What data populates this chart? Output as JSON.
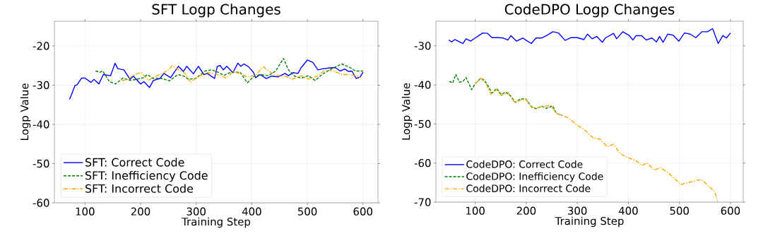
{
  "chart_data": [
    {
      "type": "line",
      "title": "SFT Logp Changes",
      "xlabel": "Training Step",
      "ylabel": "Logp Value",
      "xlim": [
        45,
        627
      ],
      "ylim": [
        -60,
        -13.7
      ],
      "xticks": [
        100,
        200,
        300,
        400,
        500,
        600
      ],
      "yticks": [
        -60,
        -50,
        -40,
        -30,
        -20
      ],
      "grid": true,
      "legend": "bottom left",
      "series": [
        {
          "name": "SFT: Correct Code",
          "color": "#0000ff",
          "line_style": "solid",
          "x": [
            72,
            75,
            82,
            86,
            94,
            100,
            111,
            116,
            125,
            133,
            146,
            154,
            159,
            170,
            181,
            187,
            200,
            206,
            216,
            223,
            235,
            242,
            254,
            268,
            277,
            283,
            295,
            304,
            314,
            320,
            333,
            338,
            343,
            349,
            355,
            366,
            375,
            380,
            386,
            394,
            403,
            407,
            415,
            426,
            436,
            447,
            460,
            466,
            474,
            483,
            489,
            500,
            510,
            519,
            529,
            542,
            550,
            559,
            567,
            574,
            580,
            588,
            595,
            600
          ],
          "values": [
            -33.6,
            -32.7,
            -30.1,
            -29.9,
            -28.2,
            -28.2,
            -29.3,
            -28.5,
            -29.7,
            -27.3,
            -27.6,
            -24.4,
            -25.8,
            -26.1,
            -28.5,
            -27.7,
            -29.7,
            -29.1,
            -30.6,
            -28.8,
            -28.3,
            -27.0,
            -28.1,
            -25.2,
            -26.5,
            -25.2,
            -27.1,
            -25.2,
            -27.3,
            -27.0,
            -28.3,
            -25.2,
            -25.0,
            -26.1,
            -25.2,
            -26.8,
            -24.4,
            -25.2,
            -24.6,
            -25.3,
            -26.7,
            -28.1,
            -27.3,
            -28.3,
            -27.7,
            -27.9,
            -27.0,
            -27.6,
            -26.8,
            -27.0,
            -25.5,
            -23.6,
            -24.2,
            -26.1,
            -25.8,
            -25.6,
            -25.5,
            -26.4,
            -25.9,
            -26.5,
            -26.4,
            -28.3,
            -27.9,
            -26.7
          ]
        },
        {
          "name": "SFT: Inefficiency Code",
          "color": "#008000",
          "line_style": "dashed",
          "x": [
            119,
            127,
            132,
            144,
            155,
            168,
            182,
            193,
            206,
            212,
            223,
            235,
            252,
            267,
            278,
            286,
            299,
            316,
            328,
            339,
            350,
            362,
            379,
            392,
            403,
            415,
            430,
            443,
            457,
            466,
            477,
            489,
            502,
            514,
            529,
            544,
            562,
            574,
            587,
            600
          ],
          "values": [
            -26.4,
            -26.7,
            -26.4,
            -29.1,
            -29.7,
            -28.2,
            -28.8,
            -28.5,
            -28.1,
            -27.3,
            -28.3,
            -28.2,
            -28.9,
            -27.3,
            -27.7,
            -28.5,
            -28.3,
            -26.4,
            -26.1,
            -26.7,
            -27.5,
            -26.7,
            -26.7,
            -29.4,
            -27.9,
            -27.3,
            -27.6,
            -26.4,
            -23.2,
            -26.1,
            -27.7,
            -28.2,
            -27.6,
            -28.8,
            -27.0,
            -25.8,
            -24.6,
            -25.3,
            -26.4,
            -26.4
          ]
        },
        {
          "name": "SFT: Incorrect Code",
          "color": "#ffa500",
          "line_style": "dashdot",
          "x": [
            166,
            176,
            185,
            193,
            201,
            214,
            225,
            240,
            250,
            257,
            269,
            280,
            290,
            305,
            320,
            335,
            354,
            367,
            379,
            392,
            407,
            421,
            430,
            443,
            460,
            473,
            489,
            502,
            519,
            532,
            548,
            562,
            574,
            587,
            597
          ],
          "values": [
            -28.8,
            -28.7,
            -27.7,
            -27.1,
            -26.8,
            -28.8,
            -27.9,
            -27.0,
            -26.1,
            -25.0,
            -26.1,
            -27.0,
            -29.3,
            -27.7,
            -26.8,
            -27.1,
            -28.2,
            -26.5,
            -27.1,
            -27.9,
            -27.5,
            -25.3,
            -26.4,
            -27.5,
            -27.7,
            -28.5,
            -27.6,
            -28.5,
            -27.6,
            -26.1,
            -26.4,
            -27.3,
            -27.3,
            -27.6,
            -28.1
          ]
        }
      ]
    },
    {
      "type": "line",
      "title": "CodeDPO Logp Changes",
      "xlabel": "Training Step",
      "ylabel": "Logp Value",
      "xlim": [
        23,
        625
      ],
      "ylim": [
        -70,
        -23.7
      ],
      "xticks": [
        100,
        200,
        300,
        400,
        500,
        600
      ],
      "yticks": [
        -70,
        -60,
        -50,
        -40,
        -30
      ],
      "grid": true,
      "legend": "bottom left",
      "series": [
        {
          "name": "CodeDPO: Correct Code",
          "color": "#0000ff",
          "line_style": "solid",
          "x": [
            48,
            54,
            60,
            76,
            82,
            91,
            100,
            107,
            115,
            124,
            133,
            146,
            155,
            164,
            170,
            181,
            193,
            200,
            210,
            219,
            230,
            241,
            252,
            263,
            276,
            288,
            300,
            313,
            320,
            329,
            338,
            349,
            355,
            371,
            377,
            389,
            402,
            409,
            415,
            426,
            435,
            446,
            455,
            461,
            468,
            477,
            488,
            499,
            510,
            521,
            532,
            544,
            555,
            565,
            576,
            585,
            592,
            600
          ],
          "values": [
            -28.5,
            -29.0,
            -28.4,
            -29.4,
            -28.2,
            -28.8,
            -28.0,
            -27.4,
            -26.7,
            -26.8,
            -27.9,
            -27.9,
            -28.0,
            -28.5,
            -27.4,
            -28.8,
            -28.0,
            -28.6,
            -29.4,
            -28.0,
            -28.0,
            -27.3,
            -26.4,
            -26.7,
            -28.6,
            -27.9,
            -27.9,
            -28.4,
            -27.0,
            -28.2,
            -27.6,
            -29.1,
            -28.0,
            -26.8,
            -28.2,
            -26.4,
            -27.4,
            -28.5,
            -27.4,
            -27.4,
            -28.5,
            -28.0,
            -29.0,
            -27.6,
            -29.1,
            -27.0,
            -27.3,
            -28.8,
            -26.7,
            -27.0,
            -27.9,
            -26.4,
            -26.4,
            -25.6,
            -29.4,
            -27.4,
            -28.0,
            -26.7
          ]
        },
        {
          "name": "CodeDPO: Inefficiency Code",
          "color": "#008000",
          "line_style": "dashed",
          "x": [
            49,
            56,
            62,
            69,
            76,
            82,
            93,
            100,
            111,
            118,
            124,
            133,
            142,
            151,
            159,
            170,
            179,
            188,
            199,
            210,
            219,
            230,
            239,
            252,
            259,
            270
          ],
          "values": [
            -39.1,
            -39.5,
            -37.3,
            -39.3,
            -39.1,
            -38.1,
            -41.2,
            -39.7,
            -38.3,
            -38.8,
            -40.0,
            -42.1,
            -40.9,
            -42.5,
            -41.8,
            -42.9,
            -44.5,
            -43.6,
            -43.6,
            -45.5,
            -46.1,
            -45.4,
            -46.0,
            -45.4,
            -47.3,
            -47.8
          ]
        },
        {
          "name": "CodeDPO: Incorrect Code",
          "color": "#ffa500",
          "line_style": "dashdot",
          "x": [
            100,
            111,
            122,
            131,
            142,
            151,
            164,
            177,
            189,
            199,
            211,
            221,
            234,
            248,
            259,
            270,
            283,
            300,
            314,
            331,
            345,
            358,
            371,
            384,
            397,
            415,
            426,
            437,
            450,
            463,
            477,
            490,
            503,
            523,
            543,
            554,
            569,
            575
          ],
          "values": [
            -39.7,
            -38.2,
            -39.9,
            -42.4,
            -41.2,
            -42.7,
            -41.9,
            -44.5,
            -43.9,
            -43.7,
            -45.8,
            -45.9,
            -45.5,
            -45.2,
            -47.3,
            -47.8,
            -48.5,
            -50.3,
            -51.5,
            -53.6,
            -53.9,
            -55.8,
            -55.2,
            -57.6,
            -58.5,
            -59.4,
            -60.6,
            -60.0,
            -61.8,
            -61.2,
            -62.4,
            -63.9,
            -65.5,
            -64.8,
            -64.2,
            -65.5,
            -67.3,
            -69.8
          ]
        }
      ]
    }
  ]
}
